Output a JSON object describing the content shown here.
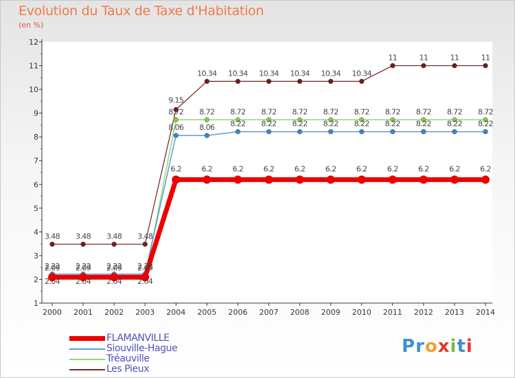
{
  "title": "Evolution du Taux de Taxe d'Habitation",
  "subtitle": "(en %)",
  "logo": {
    "text": "Proxiti",
    "letter_colors": [
      "#3f8fd4",
      "#3f8fd4",
      "#f0a030",
      "#e03a30",
      "#6fbf3a",
      "#3f8fd4",
      "#e03a30"
    ]
  },
  "legend": [
    {
      "label": "FLAMANVILLE",
      "color": "#ee0000"
    },
    {
      "label": "Siouville-Hague",
      "color": "#5b9bd5"
    },
    {
      "label": "Tréauville",
      "color": "#8fd96f"
    },
    {
      "label": "Les Pieux",
      "color": "#7a2a2a"
    }
  ],
  "chart_data": {
    "type": "line",
    "title": "Evolution du Taux de Taxe d'Habitation",
    "ylabel": "(en %)",
    "xlabel": "",
    "ylim": [
      1,
      12
    ],
    "yticks": [
      1,
      2,
      3,
      4,
      5,
      6,
      7,
      8,
      9,
      10,
      11,
      12
    ],
    "grid": false,
    "legend_position": "bottom-left",
    "x": [
      "2000",
      "2001",
      "2002",
      "2003",
      "2004",
      "2005",
      "2006",
      "2007",
      "2008",
      "2009",
      "2010",
      "2011",
      "2012",
      "2013",
      "2014"
    ],
    "series": [
      {
        "name": "Les Pieux",
        "color": "#6e1e1e",
        "dot": "#6e1e1e",
        "width": 1.2,
        "values": [
          3.48,
          3.48,
          3.48,
          3.48,
          9.15,
          10.34,
          10.34,
          10.34,
          10.34,
          10.34,
          10.34,
          11,
          11,
          11,
          11
        ],
        "labels": [
          "3.48",
          "3.48",
          "3.48",
          "3.48",
          "9.15",
          "10.34",
          "10.34",
          "10.34",
          "10.34",
          "10.34",
          "10.34",
          "11",
          "11",
          "11",
          "11"
        ]
      },
      {
        "name": "Tréauville",
        "color": "#8fd96f",
        "dot": "#7fcf45",
        "width": 1.5,
        "values": [
          2.04,
          2.04,
          2.04,
          2.04,
          8.72,
          8.72,
          8.72,
          8.72,
          8.72,
          8.72,
          8.72,
          8.72,
          8.72,
          8.72,
          8.72
        ],
        "labels": [
          "2.04",
          "2.04",
          "2.04",
          "2.04",
          "8.72",
          "8.72",
          "8.72",
          "8.72",
          "8.72",
          "8.72",
          "8.72",
          "8.72",
          "8.72",
          "8.72",
          "8.72"
        ]
      },
      {
        "name": "Siouville-Hague",
        "color": "#5b9bd5",
        "dot": "#3a85c8",
        "width": 1.5,
        "values": [
          2.22,
          2.22,
          2.22,
          2.22,
          8.06,
          8.06,
          8.22,
          8.22,
          8.22,
          8.22,
          8.22,
          8.22,
          8.22,
          8.22,
          8.22
        ],
        "labels": [
          "2.22",
          "2.22",
          "2.22",
          "2.22",
          "8.06",
          "8.06",
          "8.22",
          "8.22",
          "8.22",
          "8.22",
          "8.22",
          "8.22",
          "8.22",
          "8.22",
          "8.22"
        ]
      },
      {
        "name": "FLAMANVILLE",
        "color": "#ee0000",
        "dot": "#ee0000",
        "width": 7,
        "values": [
          2.09,
          2.09,
          2.09,
          2.09,
          6.2,
          6.2,
          6.2,
          6.2,
          6.2,
          6.2,
          6.2,
          6.2,
          6.2,
          6.2,
          6.2
        ],
        "labels": [
          "2.09",
          "2.09",
          "2.09",
          "2.09",
          "6.2",
          "6.2",
          "6.2",
          "6.2",
          "6.2",
          "6.2",
          "6.2",
          "6.2",
          "6.2",
          "6.2",
          "6.2"
        ]
      }
    ]
  }
}
